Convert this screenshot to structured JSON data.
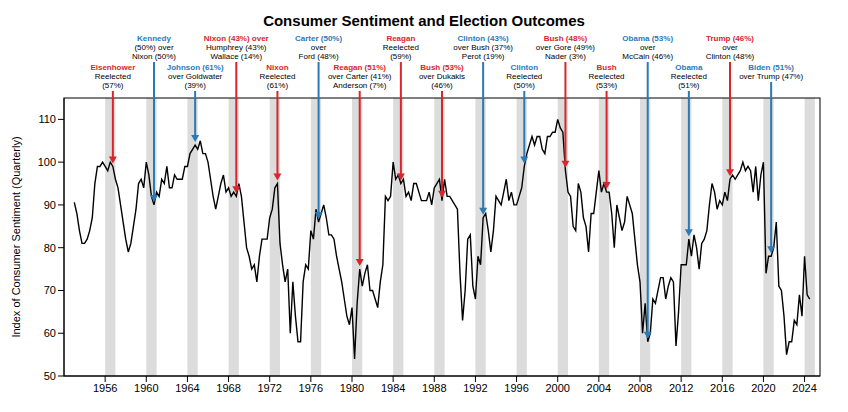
{
  "chart_data": {
    "type": "line",
    "title": "Consumer Sentiment and Election Outcomes",
    "ylabel": "Index of Consumer Sentiment (Quarterly)",
    "color": "#000000",
    "xlim": [
      1952,
      2025.5
    ],
    "xticks": [
      1956,
      1960,
      1964,
      1968,
      1972,
      1976,
      1980,
      1984,
      1988,
      1992,
      1996,
      2000,
      2004,
      2008,
      2012,
      2016,
      2020,
      2024
    ],
    "ylim": [
      50,
      115
    ],
    "yticks": [
      50,
      60,
      70,
      80,
      90,
      100,
      110
    ],
    "grid": false,
    "x": [
      1953,
      1953.25,
      1953.5,
      1953.75,
      1954,
      1954.25,
      1954.5,
      1954.75,
      1955,
      1955.25,
      1955.5,
      1955.75,
      1956,
      1956.25,
      1956.5,
      1956.75,
      1957,
      1957.25,
      1957.5,
      1957.75,
      1958,
      1958.25,
      1958.5,
      1958.75,
      1959,
      1959.25,
      1959.5,
      1959.75,
      1960,
      1960.25,
      1960.5,
      1960.75,
      1961,
      1961.25,
      1961.5,
      1961.75,
      1962,
      1962.25,
      1962.5,
      1962.75,
      1963,
      1963.25,
      1963.5,
      1963.75,
      1964,
      1964.25,
      1964.5,
      1964.75,
      1965,
      1965.25,
      1965.5,
      1965.75,
      1966,
      1966.25,
      1966.5,
      1966.75,
      1967,
      1967.25,
      1967.5,
      1967.75,
      1968,
      1968.25,
      1968.5,
      1968.75,
      1969,
      1969.25,
      1969.5,
      1969.75,
      1970,
      1970.25,
      1970.5,
      1970.75,
      1971,
      1971.25,
      1971.5,
      1971.75,
      1972,
      1972.25,
      1972.5,
      1972.75,
      1973,
      1973.25,
      1973.5,
      1973.75,
      1974,
      1974.25,
      1974.5,
      1974.75,
      1975,
      1975.25,
      1975.5,
      1975.75,
      1976,
      1976.25,
      1976.5,
      1976.75,
      1977,
      1977.25,
      1977.5,
      1977.75,
      1978,
      1978.25,
      1978.5,
      1978.75,
      1979,
      1979.25,
      1979.5,
      1979.75,
      1980,
      1980.25,
      1980.5,
      1980.75,
      1981,
      1981.25,
      1981.5,
      1981.75,
      1982,
      1982.25,
      1982.5,
      1982.75,
      1983,
      1983.25,
      1983.5,
      1983.75,
      1984,
      1984.25,
      1984.5,
      1984.75,
      1985,
      1985.25,
      1985.5,
      1985.75,
      1986,
      1986.25,
      1986.5,
      1986.75,
      1987,
      1987.25,
      1987.5,
      1987.75,
      1988,
      1988.25,
      1988.5,
      1988.75,
      1989,
      1989.25,
      1989.5,
      1989.75,
      1990,
      1990.25,
      1990.5,
      1990.75,
      1991,
      1991.25,
      1991.5,
      1991.75,
      1992,
      1992.25,
      1992.5,
      1992.75,
      1993,
      1993.25,
      1993.5,
      1993.75,
      1994,
      1994.25,
      1994.5,
      1994.75,
      1995,
      1995.25,
      1995.5,
      1995.75,
      1996,
      1996.25,
      1996.5,
      1996.75,
      1997,
      1997.25,
      1997.5,
      1997.75,
      1998,
      1998.25,
      1998.5,
      1998.75,
      1999,
      1999.25,
      1999.5,
      1999.75,
      2000,
      2000.25,
      2000.5,
      2000.75,
      2001,
      2001.25,
      2001.5,
      2001.75,
      2002,
      2002.25,
      2002.5,
      2002.75,
      2003,
      2003.25,
      2003.5,
      2003.75,
      2004,
      2004.25,
      2004.5,
      2004.75,
      2005,
      2005.25,
      2005.5,
      2005.75,
      2006,
      2006.25,
      2006.5,
      2006.75,
      2007,
      2007.25,
      2007.5,
      2007.75,
      2008,
      2008.25,
      2008.5,
      2008.75,
      2009,
      2009.25,
      2009.5,
      2009.75,
      2010,
      2010.25,
      2010.5,
      2010.75,
      2011,
      2011.25,
      2011.5,
      2011.75,
      2012,
      2012.25,
      2012.5,
      2012.75,
      2013,
      2013.25,
      2013.5,
      2013.75,
      2014,
      2014.25,
      2014.5,
      2014.75,
      2015,
      2015.25,
      2015.5,
      2015.75,
      2016,
      2016.25,
      2016.5,
      2016.75,
      2017,
      2017.25,
      2017.5,
      2017.75,
      2018,
      2018.25,
      2018.5,
      2018.75,
      2019,
      2019.25,
      2019.5,
      2019.75,
      2020,
      2020.25,
      2020.5,
      2020.75,
      2021,
      2021.25,
      2021.5,
      2021.75,
      2022,
      2022.25,
      2022.5,
      2022.75,
      2023,
      2023.25,
      2023.5,
      2023.75,
      2024,
      2024.25,
      2024.5
    ],
    "values": [
      90.6,
      88,
      84,
      81,
      81,
      82,
      84,
      87,
      95,
      99,
      99,
      100,
      99,
      98,
      100,
      99,
      96,
      94,
      90,
      86,
      82,
      79,
      81,
      85,
      89,
      95,
      96,
      94,
      100,
      97,
      92,
      90,
      93,
      92,
      96,
      95,
      99,
      94,
      94,
      97,
      96,
      96,
      96,
      99,
      99,
      102,
      103,
      104,
      103,
      105,
      102,
      102,
      100,
      96,
      92,
      89,
      92,
      95,
      97,
      93,
      94,
      92,
      93,
      92,
      95,
      92,
      86,
      80,
      78,
      75,
      76,
      72,
      78,
      82,
      82,
      82,
      87,
      89,
      94,
      95,
      81,
      76,
      72,
      75,
      60,
      72,
      64,
      58,
      58,
      72,
      76,
      75,
      84,
      82,
      89,
      86,
      88,
      90,
      87,
      83,
      83,
      82,
      78,
      75,
      72,
      68,
      64,
      62,
      66,
      54,
      67,
      75,
      71,
      74,
      76,
      70,
      70,
      68,
      66,
      72,
      76,
      92,
      91,
      92,
      100,
      96,
      97,
      95,
      96,
      92,
      93,
      91,
      95,
      95,
      93,
      91,
      91,
      91,
      93,
      90,
      94,
      95,
      96,
      91,
      96,
      92,
      92,
      91,
      90,
      89,
      74,
      63,
      70,
      82,
      83,
      71,
      68,
      78,
      76,
      87,
      88,
      84,
      79,
      84,
      92,
      91,
      90,
      93,
      96,
      91,
      93,
      90,
      90,
      92,
      94,
      99,
      102,
      104,
      106,
      104,
      106,
      106,
      103,
      102,
      106,
      106,
      107,
      107,
      110,
      108,
      107,
      98,
      93,
      92,
      85,
      84,
      95,
      93,
      87,
      85,
      79,
      88,
      88,
      93,
      98,
      93,
      95,
      93,
      93,
      88,
      80,
      90,
      87,
      84,
      86,
      92,
      90,
      88,
      82,
      76,
      72,
      60,
      67,
      58,
      60,
      68,
      67,
      70,
      73,
      73,
      68,
      71,
      73,
      72,
      57,
      65,
      76,
      76,
      76,
      82,
      78,
      83,
      80,
      75,
      81,
      82,
      84,
      90,
      95,
      93,
      89,
      91,
      90,
      93,
      91,
      96,
      97,
      96,
      97,
      98,
      100,
      98,
      99,
      98,
      93,
      99,
      91,
      97,
      100,
      74,
      78,
      78,
      80,
      86,
      71,
      70,
      64,
      55,
      58,
      58,
      63,
      62,
      69,
      64,
      78,
      69,
      68
    ],
    "election_periods": [
      {
        "start": 1956,
        "end": 1957
      },
      {
        "start": 1960,
        "end": 1961
      },
      {
        "start": 1964,
        "end": 1965
      },
      {
        "start": 1968,
        "end": 1969
      },
      {
        "start": 1972,
        "end": 1973
      },
      {
        "start": 1976,
        "end": 1977
      },
      {
        "start": 1980,
        "end": 1981
      },
      {
        "start": 1984,
        "end": 1985
      },
      {
        "start": 1988,
        "end": 1989
      },
      {
        "start": 1992,
        "end": 1993
      },
      {
        "start": 1996,
        "end": 1997
      },
      {
        "start": 2000,
        "end": 2001
      },
      {
        "start": 2004,
        "end": 2005
      },
      {
        "start": 2008,
        "end": 2009
      },
      {
        "start": 2012,
        "end": 2013
      },
      {
        "start": 2016,
        "end": 2017
      },
      {
        "start": 2020,
        "end": 2021
      },
      {
        "start": 2024,
        "end": 2025
      }
    ],
    "annotations": [
      {
        "lines": [
          "Eisenhower",
          "Reelected",
          "(57%)"
        ],
        "color": "#d9262c",
        "x": 1956.75
      },
      {
        "lines": [
          "Kennedy",
          "(50%) over",
          "Nixon (50%)"
        ],
        "color": "#2a7ab8",
        "x": 1960.75
      },
      {
        "lines": [
          "Johnson (61%)",
          "over Goldwater",
          "(39%)"
        ],
        "color": "#2a7ab8",
        "x": 1964.75
      },
      {
        "lines": [
          "Nixon (43%) over",
          "Humphrey (43%)",
          "Wallace (14%)"
        ],
        "color": "#d9262c",
        "x": 1968.75
      },
      {
        "lines": [
          "Nixon",
          "Reelected",
          "(61%)"
        ],
        "color": "#d9262c",
        "x": 1972.75
      },
      {
        "lines": [
          "Carter (50%)",
          "over",
          "Ford (48%)"
        ],
        "color": "#2a7ab8",
        "x": 1976.75
      },
      {
        "lines": [
          "Reagan (51%)",
          "over Carter (41%)",
          "Anderson (7%)"
        ],
        "color": "#d9262c",
        "x": 1980.75
      },
      {
        "lines": [
          "Reagan",
          "Reelected",
          "(59%)"
        ],
        "color": "#d9262c",
        "x": 1984.75
      },
      {
        "lines": [
          "Bush (53%)",
          "over Dukakis",
          "(46%)"
        ],
        "color": "#d9262c",
        "x": 1988.75
      },
      {
        "lines": [
          "Clinton (43%)",
          "over Bush (37%)",
          "Perot (19%)"
        ],
        "color": "#2a7ab8",
        "x": 1992.75
      },
      {
        "lines": [
          "Clinton",
          "Reelected",
          "(50%)"
        ],
        "color": "#2a7ab8",
        "x": 1996.75
      },
      {
        "lines": [
          "Bush (48%)",
          "over Gore (49%)",
          "Nader (3%)"
        ],
        "color": "#d9262c",
        "x": 2000.75
      },
      {
        "lines": [
          "Bush",
          "Reelected",
          "(53%)"
        ],
        "color": "#d9262c",
        "x": 2004.75
      },
      {
        "lines": [
          "Obama (53%)",
          "over",
          "McCain (46%)"
        ],
        "color": "#2a7ab8",
        "x": 2008.75
      },
      {
        "lines": [
          "Obama",
          "Reelected",
          "(51%)"
        ],
        "color": "#2a7ab8",
        "x": 2012.75
      },
      {
        "lines": [
          "Trump (46%)",
          "over",
          "Clinton (48%)"
        ],
        "color": "#d9262c",
        "x": 2016.75
      },
      {
        "lines": [
          "Biden (51%)",
          "over Trump (47%)"
        ],
        "color": "#2a7ab8",
        "x": 2020.75
      }
    ]
  }
}
